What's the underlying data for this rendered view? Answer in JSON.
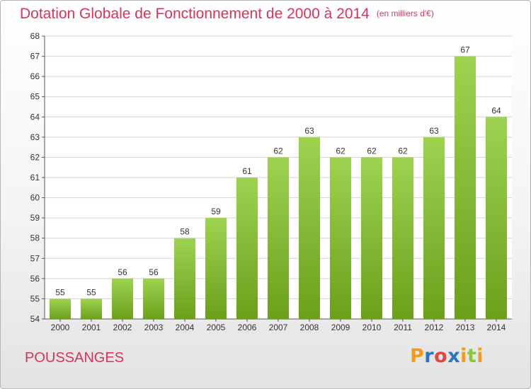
{
  "header": {
    "title": "Dotation Globale de Fonctionnement de 2000 à 2014",
    "subtitle": "(en milliers d'€)"
  },
  "footer": {
    "commune": "POUSSANGES",
    "logo": "Proxiti"
  },
  "colors": {
    "title": "#d9335a",
    "bar_top": "#9ed352",
    "bar_bottom": "#6b9f1c",
    "axis": "#555555",
    "grid": "#d2d2d2",
    "logo_letters": [
      "#f39a1d",
      "#2a74c5",
      "#e8433b",
      "#2a74c5",
      "#f39a1d",
      "#8cc63f"
    ]
  },
  "chart_data": {
    "type": "bar",
    "categories": [
      "2000",
      "2001",
      "2002",
      "2003",
      "2004",
      "2005",
      "2006",
      "2007",
      "2008",
      "2009",
      "2010",
      "2011",
      "2012",
      "2013",
      "2014"
    ],
    "values": [
      55,
      55,
      56,
      56,
      58,
      59,
      61,
      62,
      63,
      62,
      62,
      62,
      63,
      67,
      64
    ],
    "data_labels": [
      "55",
      "55",
      "56",
      "56",
      "58",
      "59",
      "61",
      "62",
      "63",
      "62",
      "62",
      "62",
      "63",
      "67",
      "64"
    ],
    "yticks": [
      54,
      55,
      56,
      57,
      58,
      59,
      60,
      61,
      62,
      63,
      64,
      65,
      66,
      67,
      68
    ],
    "ylim": [
      54,
      68
    ],
    "grid": true,
    "legend": false
  }
}
